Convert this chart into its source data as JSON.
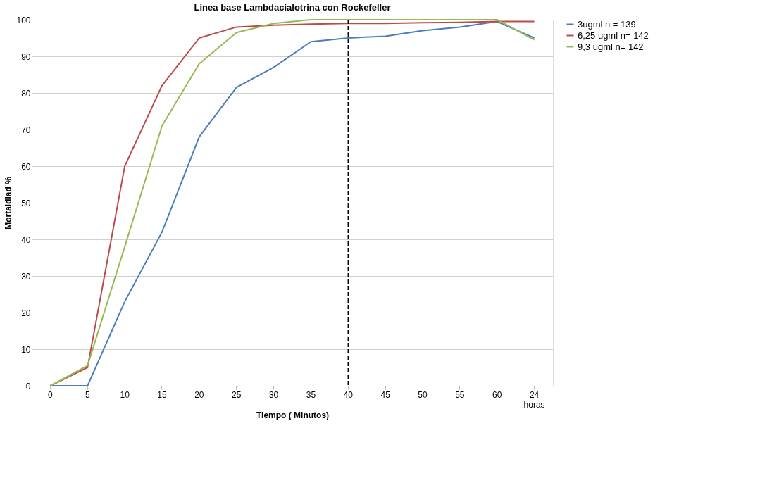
{
  "chart_data": {
    "type": "line",
    "title": "Linea base Lambdacialotrina con Rockefeller",
    "xlabel": "Tiempo ( Minutos)",
    "ylabel": "Mortaldiad  %",
    "categories": [
      "0",
      "5",
      "10",
      "15",
      "20",
      "25",
      "30",
      "35",
      "40",
      "45",
      "50",
      "55",
      "60",
      "24 horas"
    ],
    "series": [
      {
        "name": "3ugml n = 139",
        "color": "#4a7ebb",
        "values": [
          0,
          0,
          23,
          42,
          68,
          81.5,
          87,
          94,
          95,
          95.5,
          97,
          98,
          99.5,
          95
        ]
      },
      {
        "name": "6,25 ugml n= 142",
        "color": "#be4b48",
        "values": [
          0,
          5,
          60,
          82,
          95,
          98,
          98.5,
          98.8,
          99,
          99,
          99.2,
          99.3,
          99.5,
          99.5
        ]
      },
      {
        "name": "9,3 ugml n=  142",
        "color": "#98b954",
        "values": [
          0,
          5.5,
          38,
          71,
          88,
          96.5,
          99,
          100,
          100,
          100,
          100,
          100,
          100,
          94.5
        ]
      }
    ],
    "ylim": [
      0,
      100
    ],
    "yticks": [
      0,
      10,
      20,
      30,
      40,
      50,
      60,
      70,
      80,
      90,
      100
    ],
    "ref_lines": [
      {
        "axis": "x",
        "value": "40",
        "color": "#000000",
        "line_style": "dashed"
      }
    ],
    "grid": "y",
    "legend": "right",
    "marker": "none",
    "line_style": "solid"
  }
}
